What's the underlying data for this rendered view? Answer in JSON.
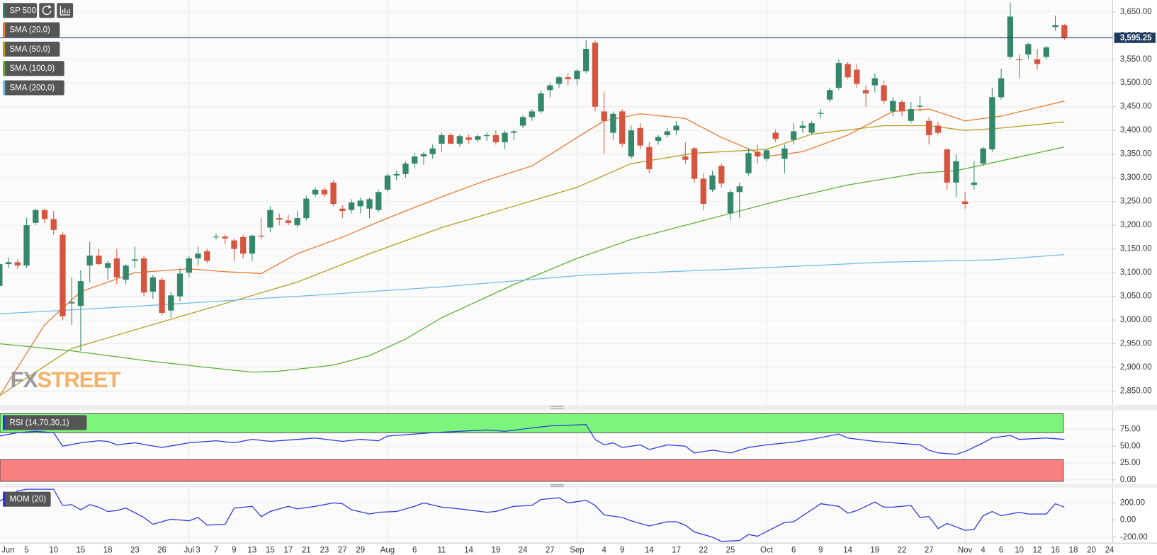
{
  "chart_data": [
    {
      "type": "candlestick",
      "title": "SP 500",
      "categories": [
        "Jun",
        null,
        null,
        null,
        "5",
        null,
        null,
        "10",
        null,
        null,
        "15",
        null,
        null,
        "18",
        null,
        null,
        "23",
        null,
        null,
        "26",
        null,
        null,
        "Jul",
        "3",
        null,
        "7",
        null,
        "9",
        null,
        "13",
        null,
        "15",
        null,
        "17",
        null,
        "21",
        null,
        "23",
        null,
        "27",
        null,
        "29",
        null,
        null,
        "Aug",
        null,
        null,
        "6",
        null,
        null,
        "11",
        null,
        null,
        "14",
        null,
        null,
        "19",
        null,
        null,
        "24",
        null,
        null,
        "27",
        null,
        null,
        "Sep",
        null,
        null,
        "4",
        null,
        "9",
        null,
        null,
        "14",
        null,
        null,
        "17",
        null,
        null,
        "22",
        null,
        null,
        "25",
        null,
        null,
        null,
        "Oct",
        null,
        null,
        "6",
        null,
        null,
        "9",
        null,
        null,
        "14",
        null,
        null,
        "19",
        null,
        null,
        "22",
        null,
        null,
        "27",
        null,
        null,
        null,
        "Nov",
        null,
        "4",
        null,
        "6",
        null,
        "10",
        null,
        "12",
        null,
        "16",
        null,
        "18",
        null,
        "20",
        null,
        "24",
        null
      ],
      "open": [
        3050,
        3072,
        3118,
        3122,
        3115,
        3205,
        3232,
        3213,
        3180,
        3035,
        3030,
        3115,
        3136,
        3110,
        3130,
        3085,
        3125,
        3130,
        3060,
        3085,
        3020,
        3050,
        3100,
        3130,
        3145,
        3175,
        3176,
        3168,
        3175,
        3140,
        3178,
        3195,
        3215,
        3210,
        3200,
        3215,
        3265,
        3275,
        3290,
        3235,
        3232,
        3240,
        3235,
        3232,
        3275,
        3305,
        3308,
        3330,
        3345,
        3350,
        3372,
        3390,
        3372,
        3385,
        3380,
        3388,
        3390,
        3375,
        3395,
        3410,
        3428,
        3440,
        3485,
        3498,
        3512,
        3508,
        3525,
        3585,
        3440,
        3395,
        3440,
        3345,
        3405,
        3365,
        3378,
        3390,
        3400,
        3345,
        3362,
        3298,
        3275,
        3325,
        3225,
        3270,
        3310,
        3355,
        3340,
        3395,
        3340,
        3380,
        3405,
        3395,
        3435,
        3465,
        3490,
        3540,
        3528,
        3485,
        3495,
        3495,
        3440,
        3460,
        3420,
        3450,
        3420,
        3410,
        3360,
        3290,
        3250,
        3285,
        3330,
        3360,
        3470,
        3555,
        3550,
        3560,
        3550,
        3555,
        3618,
        3622,
        null,
        null,
        null,
        null,
        null,
        null
      ],
      "high": [
        3072,
        3128,
        3132,
        3128,
        3215,
        3235,
        3235,
        3230,
        3185,
        3090,
        3105,
        3165,
        3150,
        3125,
        3150,
        3118,
        3155,
        3135,
        3095,
        3090,
        3060,
        3110,
        3135,
        3155,
        3150,
        3182,
        3180,
        3172,
        3180,
        3180,
        3215,
        3240,
        3225,
        3222,
        3230,
        3262,
        3280,
        3280,
        3295,
        3242,
        3255,
        3258,
        3258,
        3275,
        3310,
        3315,
        3335,
        3352,
        3355,
        3370,
        3395,
        3395,
        3392,
        3392,
        3392,
        3396,
        3400,
        3400,
        3402,
        3432,
        3445,
        3485,
        3500,
        3515,
        3520,
        3530,
        3590,
        3590,
        3480,
        3440,
        3445,
        3410,
        3415,
        3375,
        3390,
        3405,
        3420,
        3375,
        3365,
        3310,
        3315,
        3330,
        3275,
        3290,
        3362,
        3370,
        3362,
        3402,
        3370,
        3415,
        3420,
        3420,
        3445,
        3490,
        3550,
        3545,
        3540,
        3495,
        3520,
        3505,
        3470,
        3465,
        3460,
        3472,
        3428,
        3418,
        3362,
        3350,
        3270,
        3335,
        3365,
        3490,
        3530,
        3670,
        3560,
        3585,
        3572,
        3578,
        3642,
        3625,
        null,
        null,
        null,
        null,
        null,
        null
      ],
      "low": [
        3045,
        3065,
        3110,
        3108,
        3110,
        3200,
        3205,
        3180,
        3000,
        2990,
        2935,
        3080,
        3115,
        3085,
        3075,
        3075,
        3110,
        3050,
        3045,
        3010,
        3005,
        3040,
        3090,
        3115,
        3120,
        3170,
        3160,
        3125,
        3130,
        3125,
        3170,
        3185,
        3200,
        3200,
        3195,
        3210,
        3260,
        3260,
        3240,
        3215,
        3225,
        3225,
        3215,
        3228,
        3270,
        3295,
        3300,
        3320,
        3328,
        3340,
        3355,
        3370,
        3365,
        3372,
        3375,
        3378,
        3370,
        3360,
        3380,
        3405,
        3420,
        3435,
        3470,
        3490,
        3495,
        3495,
        3520,
        3440,
        3350,
        3380,
        3365,
        3340,
        3360,
        3310,
        3370,
        3385,
        3390,
        3330,
        3290,
        3232,
        3270,
        3280,
        3210,
        3215,
        3305,
        3330,
        3335,
        3375,
        3310,
        3370,
        3395,
        3390,
        3425,
        3460,
        3485,
        3508,
        3490,
        3450,
        3480,
        3455,
        3430,
        3430,
        3415,
        3440,
        3370,
        3390,
        3275,
        3260,
        3235,
        3275,
        3325,
        3355,
        3465,
        3550,
        3510,
        3550,
        3528,
        3550,
        3610,
        3590,
        null,
        null,
        null,
        null,
        null,
        null
      ],
      "close": [
        3070,
        3118,
        3122,
        3115,
        3200,
        3232,
        3213,
        3190,
        3008,
        3038,
        3082,
        3136,
        3118,
        3120,
        3090,
        3115,
        3128,
        3058,
        3090,
        3015,
        3052,
        3098,
        3130,
        3140,
        3125,
        3176,
        3172,
        3150,
        3140,
        3178,
        3176,
        3232,
        3212,
        3205,
        3215,
        3256,
        3275,
        3265,
        3245,
        3230,
        3248,
        3252,
        3255,
        3270,
        3305,
        3308,
        3330,
        3345,
        3350,
        3362,
        3390,
        3372,
        3388,
        3380,
        3388,
        3390,
        3375,
        3395,
        3398,
        3428,
        3440,
        3478,
        3495,
        3512,
        3508,
        3526,
        3572,
        3450,
        3420,
        3435,
        3372,
        3400,
        3368,
        3318,
        3386,
        3398,
        3410,
        3338,
        3298,
        3245,
        3305,
        3288,
        3270,
        3282,
        3352,
        3345,
        3358,
        3382,
        3362,
        3398,
        3410,
        3415,
        3437,
        3485,
        3542,
        3512,
        3498,
        3478,
        3510,
        3462,
        3462,
        3440,
        3445,
        3452,
        3390,
        3395,
        3290,
        3335,
        3245,
        3290,
        3362,
        3470,
        3510,
        3640,
        3548,
        3582,
        3540,
        3575,
        3622,
        3595.25,
        null,
        null,
        null,
        null,
        null,
        null
      ],
      "up_color": "#35876b",
      "down_color": "#d6553f",
      "lines": [
        {
          "name": "SMA (20,0)",
          "color": "#e8772e",
          "x": [
            1,
            6,
            10,
            16,
            22,
            26,
            30,
            34,
            39,
            44,
            50,
            55,
            60,
            65,
            68,
            72,
            77,
            81,
            86,
            90,
            95,
            100,
            104,
            108,
            112,
            119
          ],
          "values": [
            2840,
            2990,
            3060,
            3100,
            3108,
            3102,
            3098,
            3140,
            3175,
            3215,
            3260,
            3295,
            3325,
            3385,
            3420,
            3435,
            3425,
            3385,
            3345,
            3355,
            3390,
            3440,
            3445,
            3420,
            3430,
            3462
          ]
        },
        {
          "name": "SMA (50,0)",
          "color": "#b59a1c",
          "x": [
            0,
            9,
            17,
            26,
            34,
            42,
            50,
            58,
            65,
            71,
            78,
            86,
            91,
            99,
            104,
            108,
            112,
            119
          ],
          "values": [
            2828,
            2940,
            2985,
            3035,
            3080,
            3140,
            3195,
            3240,
            3280,
            3330,
            3352,
            3360,
            3392,
            3410,
            3410,
            3400,
            3405,
            3418
          ]
        },
        {
          "name": "SMA (100,0)",
          "color": "#59b030",
          "x": [
            0,
            9,
            17,
            24,
            29,
            32,
            38,
            42,
            46,
            50,
            58,
            65,
            71,
            79,
            87,
            95,
            103,
            107,
            119
          ],
          "values": [
            2952,
            2935,
            2915,
            2900,
            2890,
            2892,
            2905,
            2925,
            2960,
            3005,
            3075,
            3130,
            3170,
            3210,
            3250,
            3285,
            3310,
            3315,
            3365
          ]
        },
        {
          "name": "SMA (200,0)",
          "color": "#72b9e8",
          "x": [
            0,
            17,
            34,
            50,
            66,
            83,
            99,
            111,
            119
          ],
          "values": [
            3012,
            3030,
            3050,
            3070,
            3095,
            3108,
            3122,
            3127,
            3138
          ]
        }
      ],
      "ylim": [
        2823,
        3675
      ],
      "yticks": [
        {
          "value": 2850,
          "label": "2,850.00"
        },
        {
          "value": 2900,
          "label": "2,900.00"
        },
        {
          "value": 2950,
          "label": "2,950.00"
        },
        {
          "value": 3000,
          "label": "3,000.00"
        },
        {
          "value": 3050,
          "label": "3,050.00"
        },
        {
          "value": 3100,
          "label": "3,100.00"
        },
        {
          "value": 3150,
          "label": "3,150.00"
        },
        {
          "value": 3200,
          "label": "3,200.00"
        },
        {
          "value": 3250,
          "label": "3,250.00"
        },
        {
          "value": 3300,
          "label": "3,300.00"
        },
        {
          "value": 3350,
          "label": "3,350.00"
        },
        {
          "value": 3400,
          "label": "3,400.00"
        },
        {
          "value": 3450,
          "label": "3,450.00"
        },
        {
          "value": 3500,
          "label": "3,500.00"
        },
        {
          "value": 3550,
          "label": "3,550.00"
        },
        {
          "value": 3600,
          "label": "3,600.00"
        },
        {
          "value": 3650,
          "label": "3,650.00"
        }
      ],
      "grid": true,
      "last_price": {
        "value": 3595.25,
        "label": "3,595.25"
      },
      "watermark": [
        "FX",
        "STREET"
      ]
    },
    {
      "type": "line",
      "name": "RSI (14,70,30,1)",
      "color": "#2b35d8",
      "x": [
        1,
        3,
        5,
        7,
        8,
        10,
        12,
        13,
        14,
        16,
        19,
        22,
        25,
        27,
        29,
        31,
        34,
        36,
        39,
        41,
        43,
        44,
        47,
        49,
        52,
        55,
        57,
        60,
        62,
        66,
        67,
        68,
        69,
        70,
        72,
        73,
        75,
        77,
        78,
        80,
        82,
        84,
        86,
        89,
        91,
        94,
        95,
        98,
        100,
        103,
        104,
        105,
        107,
        108,
        110,
        111,
        113,
        114,
        117,
        119
      ],
      "values": [
        65,
        70,
        72,
        70,
        50,
        55,
        58,
        57,
        52,
        55,
        48,
        55,
        58,
        55,
        60,
        57,
        60,
        62,
        57,
        60,
        58,
        65,
        68,
        70,
        72,
        74,
        72,
        77,
        80,
        82,
        60,
        52,
        55,
        48,
        52,
        45,
        52,
        50,
        40,
        44,
        40,
        48,
        52,
        56,
        60,
        68,
        62,
        57,
        55,
        52,
        44,
        40,
        38,
        42,
        55,
        62,
        66,
        60,
        62,
        60
      ],
      "ylim": [
        -5.5,
        101.5
      ],
      "yticks": [
        {
          "value": 0,
          "label": "0.00"
        },
        {
          "value": 25,
          "label": "25.00"
        },
        {
          "value": 50,
          "label": "50.00"
        },
        {
          "value": 75,
          "label": "75.00"
        }
      ],
      "overbought": 70,
      "oversold": 30,
      "overbought_color": "#7cf57a",
      "oversold_color": "#f98080"
    },
    {
      "type": "line",
      "name": "MOM (20)",
      "color": "#2b35d8",
      "x": [
        1,
        3,
        4,
        7,
        8,
        9,
        10,
        11,
        12,
        13,
        14,
        15,
        17,
        18,
        20,
        22,
        23,
        24,
        26,
        27,
        29,
        30,
        31,
        33,
        34,
        36,
        38,
        39,
        40,
        42,
        43,
        45,
        47,
        48,
        50,
        52,
        55,
        56,
        58,
        60,
        61,
        63,
        64,
        66,
        67,
        68,
        70,
        71,
        72,
        73,
        75,
        76,
        77,
        78,
        80,
        81,
        83,
        84,
        85,
        87,
        88,
        89,
        91,
        92,
        94,
        95,
        96,
        98,
        99,
        100,
        102,
        103,
        104,
        105,
        106,
        108,
        109,
        110,
        111,
        112,
        114,
        115,
        117,
        118,
        119
      ],
      "values": [
        220,
        340,
        360,
        360,
        170,
        180,
        120,
        180,
        150,
        100,
        110,
        140,
        30,
        -50,
        10,
        -10,
        30,
        -60,
        -50,
        140,
        160,
        40,
        100,
        160,
        130,
        160,
        200,
        190,
        120,
        70,
        90,
        100,
        160,
        200,
        150,
        130,
        90,
        100,
        160,
        170,
        240,
        260,
        200,
        230,
        170,
        60,
        30,
        -10,
        -40,
        -70,
        -20,
        -20,
        -60,
        -140,
        -200,
        -250,
        -240,
        -170,
        -190,
        -80,
        -30,
        -20,
        120,
        190,
        160,
        80,
        110,
        210,
        150,
        150,
        170,
        30,
        40,
        -100,
        -40,
        -120,
        -110,
        50,
        100,
        50,
        90,
        70,
        70,
        190,
        150
      ],
      "ylim": [
        -270,
        374
      ],
      "yticks": [
        {
          "value": -200,
          "label": "-200.00"
        },
        {
          "value": 0,
          "label": "0.00"
        },
        {
          "value": 200,
          "label": "200.00"
        }
      ]
    }
  ]
}
